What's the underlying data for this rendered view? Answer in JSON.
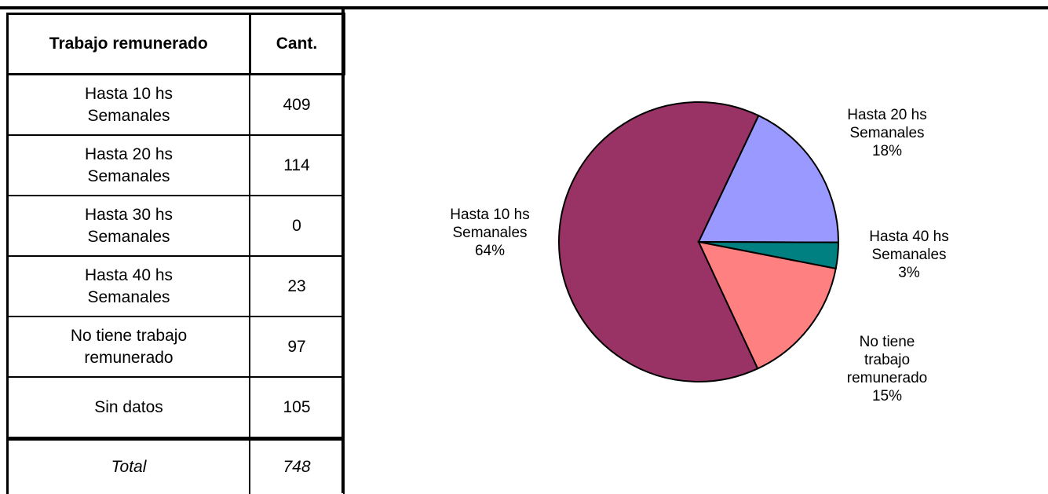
{
  "table": {
    "headers": [
      "Trabajo remunerado",
      "Cant."
    ],
    "rows": [
      [
        "Hasta 10 hs\nSemanales",
        "409"
      ],
      [
        "Hasta 20 hs\nSemanales",
        "114"
      ],
      [
        "Hasta 30 hs\nSemanales",
        "0"
      ],
      [
        "Hasta 40 hs\nSemanales",
        "23"
      ],
      [
        "No tiene trabajo\nremunerado",
        "97"
      ],
      [
        "Sin datos",
        "105"
      ]
    ],
    "total": [
      "Total",
      "748"
    ]
  },
  "chart_data": {
    "type": "pie",
    "categories": [
      "Hasta 10 hs\nSemanales",
      "Hasta 20 hs\nSemanales",
      "Hasta 40 hs\nSemanales",
      "No tiene\ntrabajo\nremunerado"
    ],
    "values": [
      64,
      18,
      3,
      15
    ],
    "value_labels": [
      "64%",
      "18%",
      "3%",
      "15%"
    ],
    "colors": [
      "#993366",
      "#9999ff",
      "#008080",
      "#ff8080"
    ]
  }
}
